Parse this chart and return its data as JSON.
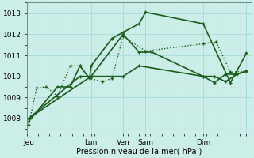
{
  "xlabel": "Pression niveau de la mer( hPa )",
  "ylim": [
    1007.3,
    1013.5
  ],
  "xlim": [
    0,
    7.0
  ],
  "yticks": [
    1008,
    1009,
    1010,
    1011,
    1012,
    1013
  ],
  "xtick_positions": [
    0.05,
    2.0,
    3.0,
    3.7,
    5.5,
    6.85
  ],
  "xtick_labels": [
    "Jeu",
    "Lun",
    "Ven",
    "Sam",
    "Dim",
    ""
  ],
  "bg_color": "#cceee8",
  "grid_major_color": "#aadddd",
  "grid_minor_color": "#c8e8e4",
  "line_color": "#1a5c1a",
  "vline_color": "#557777",
  "vline_positions": [
    0.05,
    2.0,
    3.0,
    3.7,
    5.5,
    6.85
  ],
  "series": [
    {
      "x": [
        0.05,
        0.3,
        0.6,
        0.95,
        1.35,
        1.65,
        1.95,
        2.35,
        2.65,
        3.0,
        3.7,
        5.5,
        5.9,
        6.35,
        6.85
      ],
      "y": [
        1007.7,
        1009.45,
        1009.5,
        1009.05,
        1010.5,
        1010.5,
        1009.9,
        1009.75,
        1009.9,
        1011.9,
        1011.2,
        1011.55,
        1011.65,
        1010.2,
        1010.25
      ],
      "style": "dotted",
      "lw": 1.0
    },
    {
      "x": [
        0.05,
        0.95,
        1.35,
        1.65,
        1.95,
        2.0,
        2.65,
        3.0,
        3.5,
        3.7,
        5.5,
        6.35,
        6.85
      ],
      "y": [
        1007.85,
        1009.5,
        1009.5,
        1010.5,
        1009.9,
        1010.5,
        1011.8,
        1012.1,
        1012.5,
        1013.05,
        1012.5,
        1009.7,
        1011.1
      ],
      "style": "solid",
      "lw": 1.2
    },
    {
      "x": [
        0.05,
        1.65,
        2.0,
        3.0,
        3.5,
        3.9,
        5.5,
        5.85,
        6.2,
        6.55,
        6.85
      ],
      "y": [
        1008.0,
        1010.0,
        1010.0,
        1012.0,
        1011.15,
        1011.15,
        1010.0,
        1010.0,
        1009.75,
        1010.1,
        1010.25
      ],
      "style": "solid",
      "lw": 1.2
    },
    {
      "x": [
        0.05,
        2.0,
        3.0,
        3.5,
        5.5,
        5.85,
        6.2,
        6.55,
        6.85
      ],
      "y": [
        1008.0,
        1010.0,
        1010.0,
        1010.5,
        1010.0,
        1009.7,
        1010.1,
        1010.1,
        1010.25
      ],
      "style": "solid",
      "lw": 1.2
    }
  ]
}
